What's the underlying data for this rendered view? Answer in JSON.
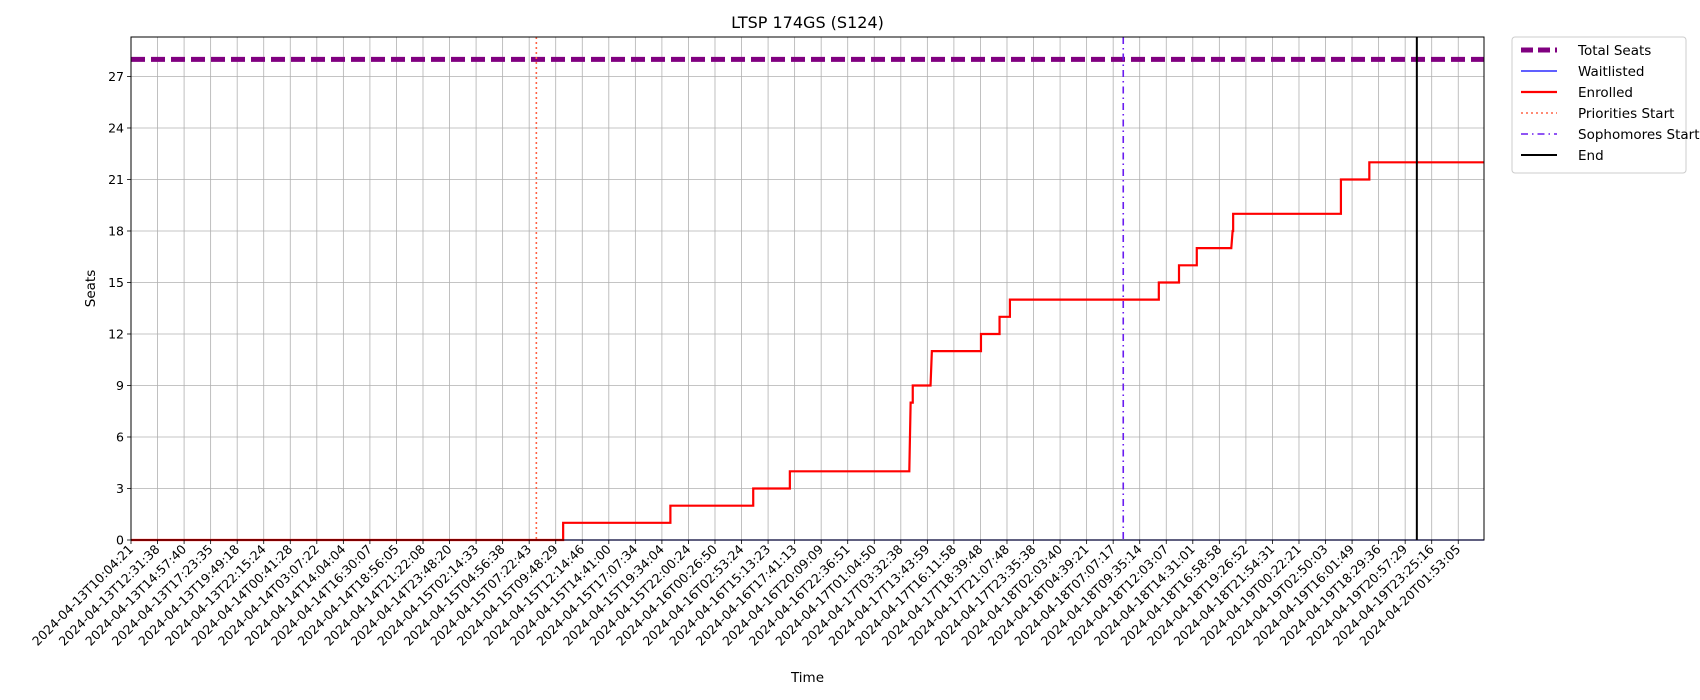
{
  "chart_data": {
    "type": "line",
    "title": "LTSP 174GS (S124)",
    "xlabel": "Time",
    "ylabel": "Seats",
    "ylim": [
      0,
      29.3
    ],
    "yticks": [
      0,
      3,
      6,
      9,
      12,
      15,
      18,
      21,
      24,
      27
    ],
    "grid": true,
    "legend_position": "outside-top-right",
    "x_ticks": [
      "2024-04-13T10:04:21",
      "2024-04-13T12:31:38",
      "2024-04-13T14:57:40",
      "2024-04-13T17:23:35",
      "2024-04-13T19:49:18",
      "2024-04-13T22:15:24",
      "2024-04-14T00:41:28",
      "2024-04-14T03:07:22",
      "2024-04-14T14:04:04",
      "2024-04-14T16:30:07",
      "2024-04-14T18:56:05",
      "2024-04-14T21:22:08",
      "2024-04-14T23:48:20",
      "2024-04-15T02:14:33",
      "2024-04-15T04:56:38",
      "2024-04-15T07:22:43",
      "2024-04-15T09:48:29",
      "2024-04-15T12:14:46",
      "2024-04-15T14:41:00",
      "2024-04-15T17:07:34",
      "2024-04-15T19:34:04",
      "2024-04-15T22:00:24",
      "2024-04-16T00:26:50",
      "2024-04-16T02:53:24",
      "2024-04-16T15:13:23",
      "2024-04-16T17:41:13",
      "2024-04-16T20:09:09",
      "2024-04-16T22:36:51",
      "2024-04-17T01:04:50",
      "2024-04-17T03:32:38",
      "2024-04-17T13:43:59",
      "2024-04-17T16:11:58",
      "2024-04-17T18:39:48",
      "2024-04-17T21:07:48",
      "2024-04-17T23:35:38",
      "2024-04-18T02:03:40",
      "2024-04-18T04:39:21",
      "2024-04-18T07:07:17",
      "2024-04-18T09:35:14",
      "2024-04-18T12:03:07",
      "2024-04-18T14:31:01",
      "2024-04-18T16:58:58",
      "2024-04-18T19:26:52",
      "2024-04-18T21:54:31",
      "2024-04-19T00:22:21",
      "2024-04-19T02:50:03",
      "2024-04-19T16:01:49",
      "2024-04-19T18:29:36",
      "2024-04-19T20:57:29",
      "2024-04-19T23:25:16",
      "2024-04-20T01:53:05"
    ],
    "series": [
      {
        "name": "Total Seats",
        "color": "#800080",
        "style": "dashed",
        "points": [
          [
            0,
            28
          ],
          [
            50.97,
            28
          ]
        ]
      },
      {
        "name": "Waitlisted",
        "color": "#0000ff",
        "style": "solid",
        "points": [
          [
            0,
            0
          ],
          [
            50.97,
            0
          ]
        ]
      },
      {
        "name": "Enrolled",
        "color": "#ff0000",
        "style": "solid",
        "points": [
          [
            0,
            0
          ],
          [
            16.28,
            0
          ],
          [
            16.28,
            1
          ],
          [
            20.32,
            1
          ],
          [
            20.32,
            2
          ],
          [
            23.44,
            2
          ],
          [
            23.44,
            3
          ],
          [
            24.82,
            3
          ],
          [
            24.82,
            4
          ],
          [
            29.32,
            4
          ],
          [
            29.37,
            8
          ],
          [
            29.45,
            8
          ],
          [
            29.45,
            9
          ],
          [
            30.12,
            9
          ],
          [
            30.17,
            11
          ],
          [
            32.02,
            11
          ],
          [
            32.02,
            12
          ],
          [
            32.72,
            12
          ],
          [
            32.72,
            13
          ],
          [
            33.11,
            13
          ],
          [
            33.11,
            14
          ],
          [
            38.72,
            14
          ],
          [
            38.72,
            15
          ],
          [
            39.48,
            15
          ],
          [
            39.48,
            16
          ],
          [
            40.15,
            16
          ],
          [
            40.15,
            17
          ],
          [
            41.45,
            17
          ],
          [
            41.5,
            18
          ],
          [
            41.52,
            18
          ],
          [
            41.52,
            19
          ],
          [
            45.58,
            19
          ],
          [
            45.58,
            21
          ],
          [
            46.65,
            21
          ],
          [
            46.65,
            22
          ],
          [
            50.97,
            22
          ]
        ]
      }
    ],
    "markers": [
      {
        "name": "Priorities Start",
        "color": "#ff6347",
        "style": "dotted",
        "x": 15.27
      },
      {
        "name": "Sophomores Start",
        "color": "#6a1cf0",
        "style": "dashdot",
        "x": 37.38
      },
      {
        "name": "End",
        "color": "#000000",
        "style": "solid",
        "x": 48.44
      }
    ],
    "x_domain": [
      0,
      50.97
    ]
  }
}
